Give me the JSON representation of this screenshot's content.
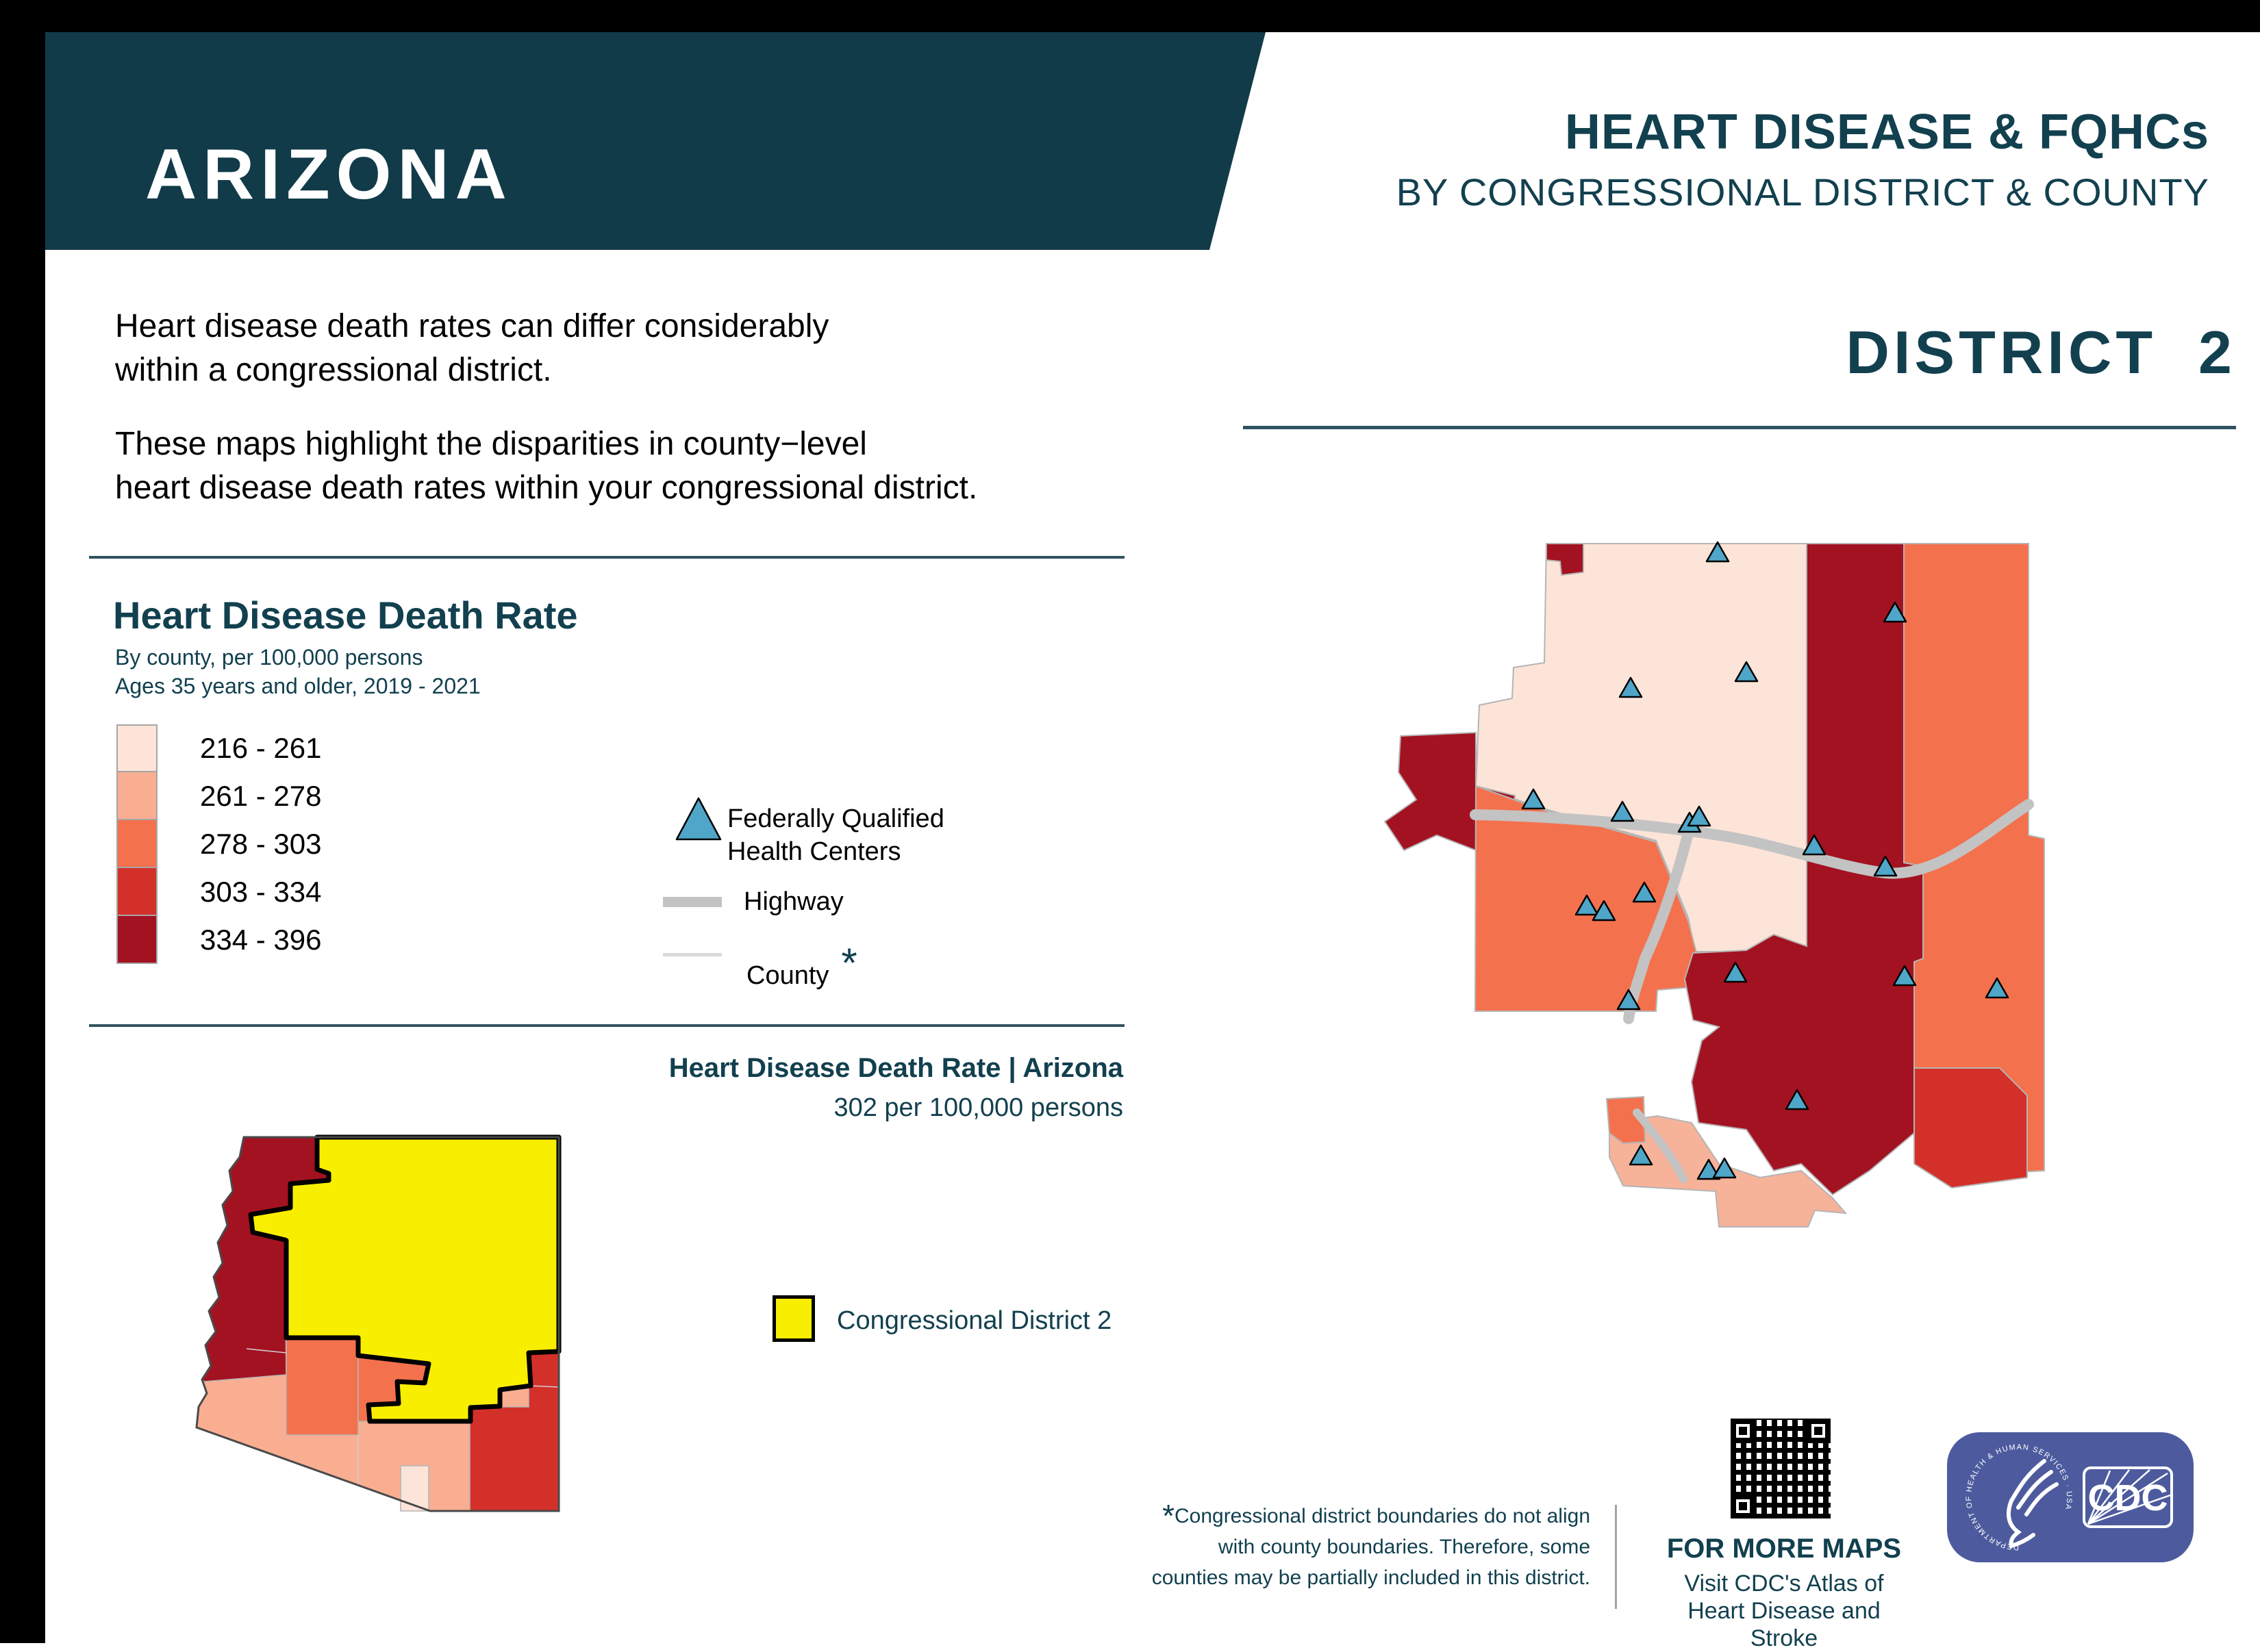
{
  "banner": {
    "state": "ARIZONA",
    "title": "HEART DISEASE & FQHCs",
    "subtitle": "BY CONGRESSIONAL DISTRICT & COUNTY"
  },
  "intro": {
    "p1_line1": "Heart disease death rates can differ considerably",
    "p1_line2": "within a congressional district.",
    "p2_line1": "These maps highlight the disparities in county−level",
    "p2_line2": "heart disease death rates within your congressional district."
  },
  "legend": {
    "title": "Heart Disease Death Rate",
    "subtitle1": "By county, per 100,000 persons",
    "subtitle2": "Ages 35 years and older, 2019 - 2021",
    "classes": [
      {
        "range": "216 - 261",
        "color": "#FCE4D8"
      },
      {
        "range": "261 - 278",
        "color": "#F9AE92"
      },
      {
        "range": "278 - 303",
        "color": "#F4714D"
      },
      {
        "range": "303 - 334",
        "color": "#D4302A"
      },
      {
        "range": "334 - 396",
        "color": "#A31221"
      }
    ],
    "fqhc_line1": "Federally Qualified",
    "fqhc_line2": "Health Centers",
    "highway_label": "Highway",
    "county_label": "County",
    "county_asterisk": "*",
    "fqhc_marker_color": "#4FA6C8"
  },
  "state_summary": {
    "title": "Heart Disease Death Rate | Arizona",
    "value": "302 per 100,000 persons"
  },
  "district": {
    "heading": "DISTRICT  2",
    "cd_legend_label": "Congressional District 2",
    "cd_color": "#F8EE00"
  },
  "district_map": {
    "fqhc_markers": [
      [
        558,
        111
      ],
      [
        817,
        199
      ],
      [
        600,
        286
      ],
      [
        431,
        309
      ],
      [
        289,
        472
      ],
      [
        419,
        490
      ],
      [
        517,
        506
      ],
      [
        531,
        497
      ],
      [
        699,
        539
      ],
      [
        803,
        570
      ],
      [
        451,
        608
      ],
      [
        367,
        627
      ],
      [
        392,
        635
      ],
      [
        584,
        725
      ],
      [
        428,
        765
      ],
      [
        831,
        730
      ],
      [
        966,
        748
      ],
      [
        674,
        911
      ],
      [
        446,
        992
      ],
      [
        545,
        1013
      ],
      [
        568,
        1011
      ]
    ]
  },
  "footnote": {
    "asterisk": "*",
    "line1": "Congressional district boundaries do not align",
    "line2": "with county boundaries. Therefore, some",
    "line3": "counties may be partially included in this district."
  },
  "more_maps": {
    "title": "FOR MORE MAPS",
    "line1": "Visit CDC's Atlas of",
    "line2": "Heart Disease and Stroke"
  },
  "logo": {
    "cdc_text": "CDC",
    "ring_text": "DEPARTMENT OF HEALTH & HUMAN SERVICES · USA",
    "background": "#4D5B9E"
  },
  "colors": {
    "banner_teal": "#113B49",
    "text_teal": "#12404F",
    "district_yellow": "#F8EE00",
    "highway_gray": "#C3C3C3",
    "black_bar": "#000000"
  }
}
